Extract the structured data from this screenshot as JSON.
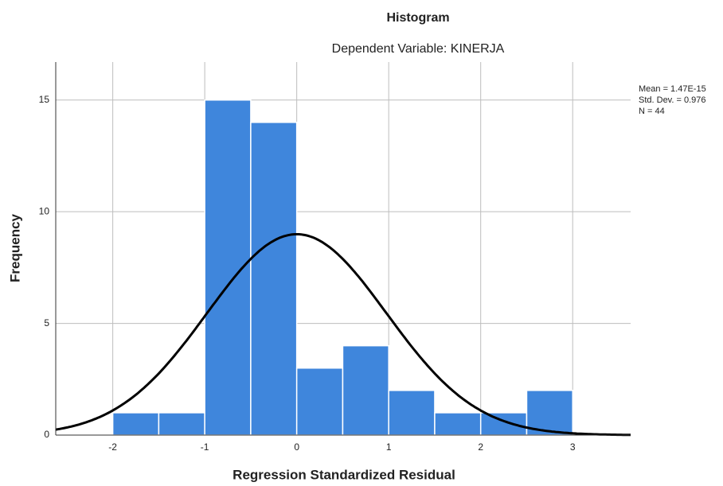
{
  "chart_data": {
    "type": "histogram",
    "title": "Histogram",
    "subtitle": "Dependent Variable: KINERJA",
    "x_label": "Regression Standardized Residual",
    "y_label": "Frequency",
    "bins": [
      -2,
      -1.5,
      -1,
      -0.5,
      0,
      0.5,
      1,
      1.5,
      2,
      2.5,
      3
    ],
    "values": [
      1,
      1,
      15,
      14,
      3,
      4,
      2,
      1,
      1,
      2
    ],
    "color": "#3f86dc",
    "xlim": [
      -2.62,
      3.63
    ],
    "xticks": [
      -2,
      -1,
      0,
      1,
      2,
      3
    ],
    "ylim": [
      0,
      16.7
    ],
    "yticks": [
      0,
      5,
      10,
      15
    ],
    "grid": true,
    "normal_curve": {
      "color": "#000000",
      "mean": {
        "value": 1.47e-15,
        "label": "Mean = 1.47E-15"
      },
      "std": {
        "value": 0.976,
        "label": "Std. Dev. = 0.976"
      },
      "n": {
        "value": 44,
        "label": "N = 44"
      }
    }
  }
}
